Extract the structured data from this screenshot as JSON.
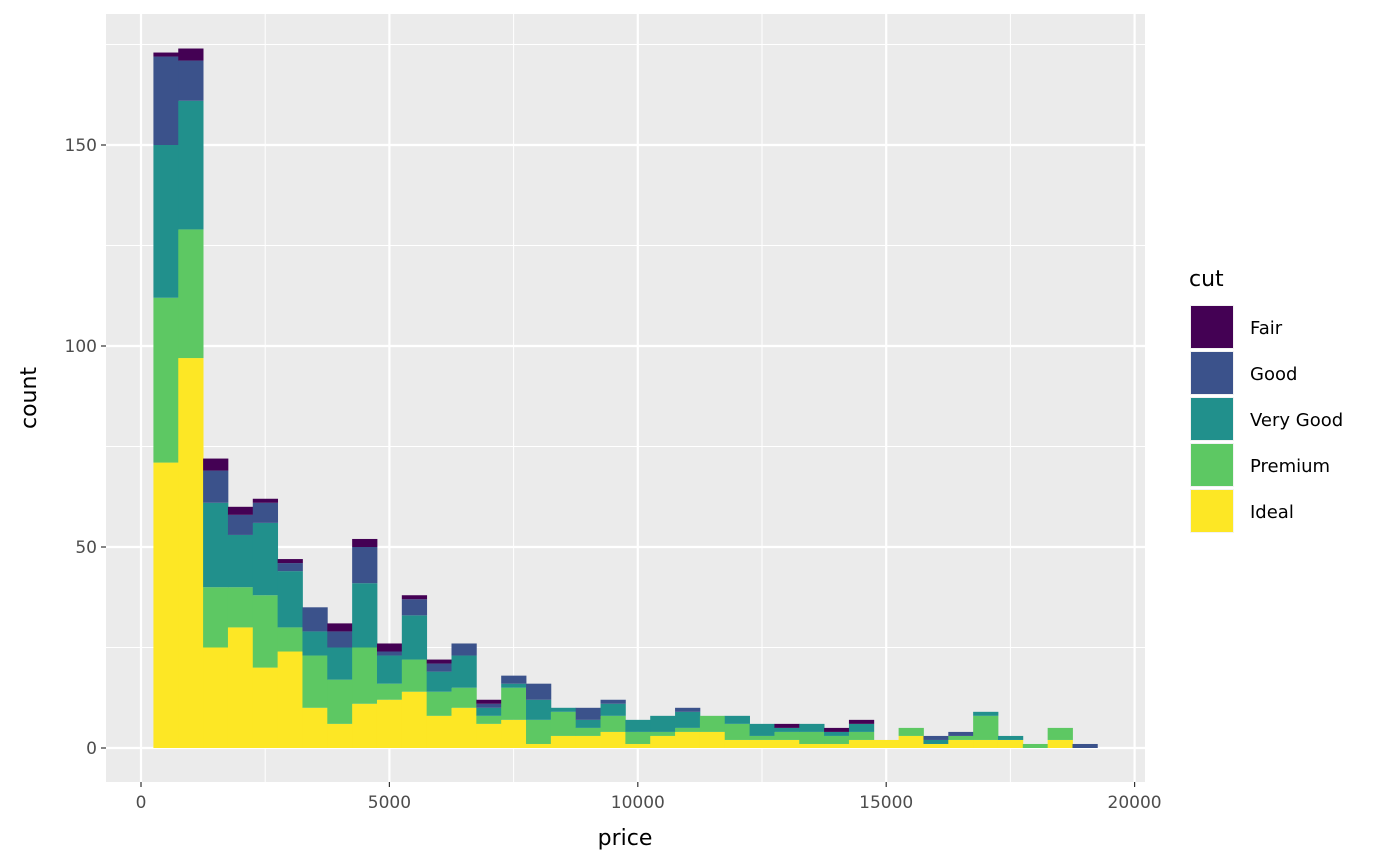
{
  "chart_data": {
    "type": "bar",
    "subtype": "stacked-histogram",
    "xlabel": "price",
    "ylabel": "count",
    "xlim": [
      -700,
      20200
    ],
    "ylim": [
      -8,
      181
    ],
    "x_ticks": [
      0,
      5000,
      10000,
      15000,
      20000
    ],
    "y_ticks": [
      0,
      50,
      100,
      150
    ],
    "grid": true,
    "bin_start": 250,
    "bin_width": 500,
    "legend": {
      "title": "cut",
      "placement": "right"
    },
    "series": [
      {
        "name": "Fair",
        "color": "#440154",
        "values": [
          1,
          3,
          3,
          2,
          1,
          1,
          0,
          2,
          2,
          2,
          1,
          1,
          0,
          1,
          0,
          0,
          0,
          0,
          0,
          0,
          0,
          0,
          0,
          0,
          0,
          1,
          0,
          1,
          1,
          0,
          0,
          0,
          0,
          0,
          0,
          0,
          0,
          0
        ]
      },
      {
        "name": "Good",
        "color": "#3B528B",
        "values": [
          22,
          10,
          8,
          5,
          5,
          2,
          6,
          4,
          9,
          1,
          4,
          2,
          3,
          1,
          2,
          4,
          0,
          3,
          1,
          0,
          0,
          1,
          0,
          0,
          0,
          0,
          0,
          0,
          0,
          0,
          0,
          1,
          1,
          0,
          0,
          0,
          0,
          1
        ]
      },
      {
        "name": "Very Good",
        "color": "#21908C",
        "values": [
          38,
          32,
          21,
          13,
          18,
          14,
          6,
          8,
          16,
          7,
          11,
          5,
          8,
          2,
          1,
          5,
          1,
          2,
          3,
          3,
          4,
          4,
          0,
          2,
          3,
          1,
          2,
          1,
          2,
          0,
          0,
          1,
          0,
          1,
          1,
          0,
          0,
          0
        ]
      },
      {
        "name": "Premium",
        "color": "#5DC863",
        "values": [
          41,
          32,
          15,
          10,
          18,
          6,
          13,
          11,
          14,
          4,
          8,
          6,
          5,
          2,
          8,
          6,
          6,
          2,
          4,
          3,
          1,
          1,
          4,
          4,
          1,
          2,
          3,
          2,
          2,
          0,
          2,
          0,
          1,
          6,
          0,
          1,
          3,
          0
        ]
      },
      {
        "name": "Ideal",
        "color": "#FDE725",
        "values": [
          71,
          97,
          25,
          30,
          20,
          24,
          10,
          6,
          11,
          12,
          14,
          8,
          10,
          6,
          7,
          1,
          3,
          3,
          4,
          1,
          3,
          4,
          4,
          2,
          2,
          2,
          1,
          1,
          2,
          2,
          3,
          1,
          2,
          2,
          2,
          0,
          2,
          0
        ]
      }
    ]
  }
}
